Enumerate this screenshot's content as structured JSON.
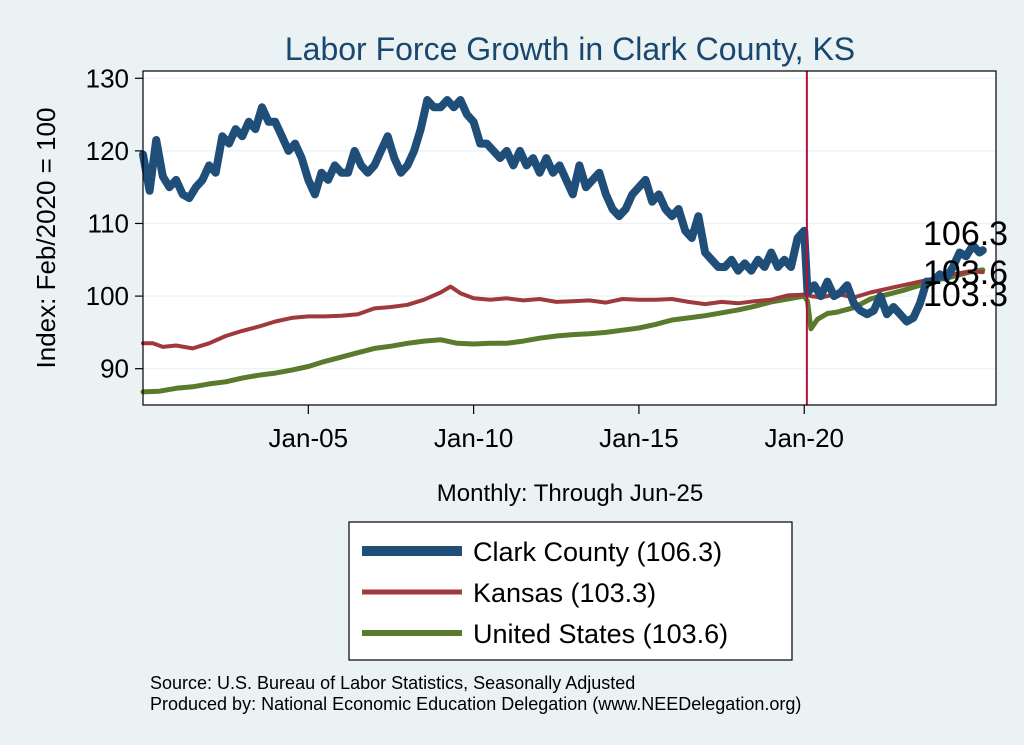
{
  "chart_data": {
    "type": "line",
    "title": "Labor Force Growth in Clark  County, KS",
    "ylabel": "Index: Feb/2020 = 100",
    "xlabel": "Monthly: Through Jun-25",
    "ylim": [
      85,
      131
    ],
    "xlim": [
      2000.0,
      2025.8
    ],
    "yticks": [
      90,
      100,
      110,
      120,
      130
    ],
    "xticks": [
      {
        "value": 2005.0,
        "label": "Jan-05"
      },
      {
        "value": 2010.0,
        "label": "Jan-10"
      },
      {
        "value": 2015.0,
        "label": "Jan-15"
      },
      {
        "value": 2020.0,
        "label": "Jan-20"
      }
    ],
    "reference_line": {
      "x": 2020.08,
      "color": "#b5103c"
    },
    "series": [
      {
        "name": "Clark  County",
        "legend": "Clark  County (106.3)",
        "end_value": "106.3",
        "color": "#1f4e79",
        "width": 8,
        "points": [
          [
            2000.0,
            119.5
          ],
          [
            2000.2,
            114.5
          ],
          [
            2000.4,
            121.5
          ],
          [
            2000.6,
            116.5
          ],
          [
            2000.8,
            115
          ],
          [
            2001.0,
            116
          ],
          [
            2001.2,
            114
          ],
          [
            2001.4,
            113.5
          ],
          [
            2001.6,
            115
          ],
          [
            2001.8,
            116
          ],
          [
            2002.0,
            118
          ],
          [
            2002.2,
            117
          ],
          [
            2002.4,
            122
          ],
          [
            2002.6,
            121
          ],
          [
            2002.8,
            123
          ],
          [
            2003.0,
            122
          ],
          [
            2003.2,
            124
          ],
          [
            2003.4,
            123
          ],
          [
            2003.6,
            126
          ],
          [
            2003.8,
            124
          ],
          [
            2004.0,
            124
          ],
          [
            2004.2,
            122
          ],
          [
            2004.4,
            120
          ],
          [
            2004.6,
            121
          ],
          [
            2004.8,
            119
          ],
          [
            2005.0,
            116
          ],
          [
            2005.2,
            114
          ],
          [
            2005.4,
            117
          ],
          [
            2005.6,
            116
          ],
          [
            2005.8,
            118
          ],
          [
            2006.0,
            117
          ],
          [
            2006.2,
            117
          ],
          [
            2006.4,
            120
          ],
          [
            2006.6,
            118
          ],
          [
            2006.8,
            117
          ],
          [
            2007.0,
            118
          ],
          [
            2007.2,
            120
          ],
          [
            2007.4,
            122
          ],
          [
            2007.6,
            119
          ],
          [
            2007.8,
            117
          ],
          [
            2008.0,
            118
          ],
          [
            2008.2,
            120
          ],
          [
            2008.4,
            123
          ],
          [
            2008.6,
            127
          ],
          [
            2008.8,
            126
          ],
          [
            2009.0,
            126
          ],
          [
            2009.2,
            127
          ],
          [
            2009.4,
            126
          ],
          [
            2009.6,
            127
          ],
          [
            2009.8,
            125
          ],
          [
            2010.0,
            124
          ],
          [
            2010.2,
            121
          ],
          [
            2010.4,
            121
          ],
          [
            2010.6,
            120
          ],
          [
            2010.8,
            119
          ],
          [
            2011.0,
            120
          ],
          [
            2011.2,
            118
          ],
          [
            2011.4,
            120
          ],
          [
            2011.6,
            118
          ],
          [
            2011.8,
            119
          ],
          [
            2012.0,
            117
          ],
          [
            2012.2,
            119
          ],
          [
            2012.4,
            117
          ],
          [
            2012.6,
            118
          ],
          [
            2012.8,
            116
          ],
          [
            2013.0,
            114
          ],
          [
            2013.2,
            118
          ],
          [
            2013.4,
            115
          ],
          [
            2013.6,
            116
          ],
          [
            2013.8,
            117
          ],
          [
            2014.0,
            114
          ],
          [
            2014.2,
            112
          ],
          [
            2014.4,
            111
          ],
          [
            2014.6,
            112
          ],
          [
            2014.8,
            114
          ],
          [
            2015.0,
            115
          ],
          [
            2015.2,
            116
          ],
          [
            2015.4,
            113
          ],
          [
            2015.6,
            114
          ],
          [
            2015.8,
            112
          ],
          [
            2016.0,
            111
          ],
          [
            2016.2,
            112
          ],
          [
            2016.4,
            109
          ],
          [
            2016.6,
            108
          ],
          [
            2016.8,
            111
          ],
          [
            2017.0,
            106
          ],
          [
            2017.2,
            105
          ],
          [
            2017.4,
            104
          ],
          [
            2017.6,
            104
          ],
          [
            2017.8,
            105
          ],
          [
            2018.0,
            103.5
          ],
          [
            2018.2,
            104.5
          ],
          [
            2018.4,
            103.5
          ],
          [
            2018.6,
            105
          ],
          [
            2018.8,
            104
          ],
          [
            2019.0,
            106
          ],
          [
            2019.2,
            104
          ],
          [
            2019.4,
            105
          ],
          [
            2019.6,
            104
          ],
          [
            2019.8,
            108
          ],
          [
            2020.0,
            109
          ],
          [
            2020.1,
            100.5
          ],
          [
            2020.3,
            101.5
          ],
          [
            2020.5,
            100
          ],
          [
            2020.7,
            102
          ],
          [
            2020.9,
            100
          ],
          [
            2021.1,
            100.5
          ],
          [
            2021.3,
            101.5
          ],
          [
            2021.5,
            99
          ],
          [
            2021.7,
            98
          ],
          [
            2021.9,
            97.5
          ],
          [
            2022.1,
            98
          ],
          [
            2022.3,
            100
          ],
          [
            2022.5,
            97.5
          ],
          [
            2022.7,
            98.5
          ],
          [
            2022.9,
            97.5
          ],
          [
            2023.1,
            96.5
          ],
          [
            2023.3,
            97
          ],
          [
            2023.5,
            99
          ],
          [
            2023.7,
            102
          ],
          [
            2023.9,
            102
          ],
          [
            2024.1,
            103
          ],
          [
            2024.3,
            102.5
          ],
          [
            2024.5,
            104
          ],
          [
            2024.7,
            106
          ],
          [
            2024.9,
            105.5
          ],
          [
            2025.1,
            107
          ],
          [
            2025.3,
            106
          ],
          [
            2025.4,
            106.3
          ]
        ]
      },
      {
        "name": "Kansas",
        "legend": "Kansas (103.3)",
        "end_value": "103.3",
        "color": "#a0393c",
        "width": 4,
        "points": [
          [
            2000.0,
            93.5
          ],
          [
            2000.3,
            93.5
          ],
          [
            2000.6,
            93
          ],
          [
            2001.0,
            93.2
          ],
          [
            2001.5,
            92.8
          ],
          [
            2002.0,
            93.5
          ],
          [
            2002.5,
            94.5
          ],
          [
            2003.0,
            95.2
          ],
          [
            2003.5,
            95.8
          ],
          [
            2004.0,
            96.5
          ],
          [
            2004.5,
            97
          ],
          [
            2005.0,
            97.2
          ],
          [
            2005.5,
            97.2
          ],
          [
            2006.0,
            97.3
          ],
          [
            2006.5,
            97.5
          ],
          [
            2007.0,
            98.3
          ],
          [
            2007.5,
            98.5
          ],
          [
            2008.0,
            98.8
          ],
          [
            2008.5,
            99.5
          ],
          [
            2009.0,
            100.5
          ],
          [
            2009.3,
            101.3
          ],
          [
            2009.6,
            100.4
          ],
          [
            2010.0,
            99.7
          ],
          [
            2010.5,
            99.5
          ],
          [
            2011.0,
            99.7
          ],
          [
            2011.5,
            99.4
          ],
          [
            2012.0,
            99.6
          ],
          [
            2012.5,
            99.2
          ],
          [
            2013.0,
            99.3
          ],
          [
            2013.5,
            99.4
          ],
          [
            2014.0,
            99.1
          ],
          [
            2014.5,
            99.6
          ],
          [
            2015.0,
            99.5
          ],
          [
            2015.5,
            99.5
          ],
          [
            2016.0,
            99.6
          ],
          [
            2016.5,
            99.2
          ],
          [
            2017.0,
            98.9
          ],
          [
            2017.5,
            99.2
          ],
          [
            2018.0,
            99
          ],
          [
            2018.5,
            99.3
          ],
          [
            2019.0,
            99.5
          ],
          [
            2019.5,
            100.1
          ],
          [
            2020.0,
            100.2
          ],
          [
            2020.2,
            100
          ],
          [
            2020.5,
            99.8
          ],
          [
            2021.0,
            100.3
          ],
          [
            2021.5,
            99.8
          ],
          [
            2022.0,
            100.5
          ],
          [
            2022.5,
            101
          ],
          [
            2023.0,
            101.5
          ],
          [
            2023.5,
            102
          ],
          [
            2024.0,
            102.5
          ],
          [
            2024.5,
            103
          ],
          [
            2025.0,
            103.4
          ],
          [
            2025.4,
            103.3
          ]
        ]
      },
      {
        "name": "United States",
        "legend": "United States (103.6)",
        "end_value": "103.6",
        "color": "#5a7a2e",
        "width": 5,
        "points": [
          [
            2000.0,
            86.8
          ],
          [
            2000.5,
            86.9
          ],
          [
            2001.0,
            87.3
          ],
          [
            2001.5,
            87.5
          ],
          [
            2002.0,
            87.9
          ],
          [
            2002.5,
            88.2
          ],
          [
            2003.0,
            88.7
          ],
          [
            2003.5,
            89.1
          ],
          [
            2004.0,
            89.4
          ],
          [
            2004.5,
            89.8
          ],
          [
            2005.0,
            90.3
          ],
          [
            2005.5,
            91
          ],
          [
            2006.0,
            91.6
          ],
          [
            2006.5,
            92.2
          ],
          [
            2007.0,
            92.8
          ],
          [
            2007.5,
            93.1
          ],
          [
            2008.0,
            93.5
          ],
          [
            2008.5,
            93.8
          ],
          [
            2009.0,
            94
          ],
          [
            2009.5,
            93.5
          ],
          [
            2010.0,
            93.4
          ],
          [
            2010.5,
            93.5
          ],
          [
            2011.0,
            93.5
          ],
          [
            2011.5,
            93.8
          ],
          [
            2012.0,
            94.2
          ],
          [
            2012.5,
            94.5
          ],
          [
            2013.0,
            94.7
          ],
          [
            2013.5,
            94.8
          ],
          [
            2014.0,
            95
          ],
          [
            2014.5,
            95.3
          ],
          [
            2015.0,
            95.6
          ],
          [
            2015.5,
            96.1
          ],
          [
            2016.0,
            96.7
          ],
          [
            2016.5,
            97
          ],
          [
            2017.0,
            97.3
          ],
          [
            2017.5,
            97.7
          ],
          [
            2018.0,
            98.1
          ],
          [
            2018.5,
            98.6
          ],
          [
            2019.0,
            99.2
          ],
          [
            2019.5,
            99.6
          ],
          [
            2020.0,
            100
          ],
          [
            2020.1,
            99.3
          ],
          [
            2020.2,
            95.5
          ],
          [
            2020.4,
            96.8
          ],
          [
            2020.7,
            97.6
          ],
          [
            2021.0,
            97.8
          ],
          [
            2021.5,
            98.4
          ],
          [
            2022.0,
            99.6
          ],
          [
            2022.5,
            100.2
          ],
          [
            2023.0,
            100.8
          ],
          [
            2023.5,
            101.5
          ],
          [
            2024.0,
            102.2
          ],
          [
            2024.5,
            102.7
          ],
          [
            2025.0,
            103.3
          ],
          [
            2025.4,
            103.6
          ]
        ]
      }
    ],
    "end_labels": [
      "106.3",
      "103.6",
      "103.3"
    ]
  },
  "legend_items": [
    {
      "label": "Clark  County (106.3)",
      "color": "#1f4e79"
    },
    {
      "label": "Kansas (103.3)",
      "color": "#a0393c"
    },
    {
      "label": "United States (103.6)",
      "color": "#5a7a2e"
    }
  ],
  "notes": {
    "source": "Source: U.S. Bureau of Labor Statistics, Seasonally Adjusted",
    "produced": "Produced by: National Economic Education Delegation (www.NEEDelegation.org)"
  }
}
